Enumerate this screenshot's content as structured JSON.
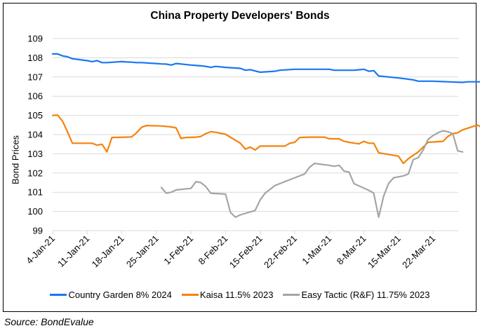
{
  "chart_data": {
    "type": "line",
    "title": "China Property Developers' Bonds",
    "xlabel": "",
    "ylabel": "Bond Prices",
    "ylim": [
      99,
      109
    ],
    "yticks": [
      99,
      100,
      101,
      102,
      103,
      104,
      105,
      106,
      107,
      108,
      109
    ],
    "grid": true,
    "legend_position": "bottom",
    "x_tick_labels": [
      "4-Jan-21",
      "11-Jan-21",
      "18-Jan-21",
      "25-Jan-21",
      "1-Feb-21",
      "8-Feb-21",
      "15-Feb-21",
      "22-Feb-21",
      "1-Mar-21",
      "8-Mar-21",
      "15-Mar-21",
      "22-Mar-21"
    ],
    "x_start": "4-Jan-21",
    "x_end_day": 82,
    "series": [
      {
        "name": "Country Garden 8% 2024",
        "color": "#1877F2",
        "points": [
          [
            0,
            108.2
          ],
          [
            1,
            108.2
          ],
          [
            2,
            108.1
          ],
          [
            3,
            108.05
          ],
          [
            4,
            107.95
          ],
          [
            7,
            107.85
          ],
          [
            8,
            107.8
          ],
          [
            9,
            107.85
          ],
          [
            10,
            107.75
          ],
          [
            11,
            107.75
          ],
          [
            14,
            107.8
          ],
          [
            15,
            107.78
          ],
          [
            16,
            107.77
          ],
          [
            17,
            107.75
          ],
          [
            18,
            107.75
          ],
          [
            21,
            107.7
          ],
          [
            22,
            107.68
          ],
          [
            23,
            107.67
          ],
          [
            24,
            107.62
          ],
          [
            25,
            107.7
          ],
          [
            28,
            107.62
          ],
          [
            29,
            107.6
          ],
          [
            30,
            107.58
          ],
          [
            31,
            107.55
          ],
          [
            32,
            107.5
          ],
          [
            33,
            107.55
          ],
          [
            35,
            107.5
          ],
          [
            38,
            107.45
          ],
          [
            39,
            107.35
          ],
          [
            40,
            107.38
          ],
          [
            42,
            107.25
          ],
          [
            45,
            107.3
          ],
          [
            46,
            107.35
          ],
          [
            49,
            107.4
          ],
          [
            52,
            107.4
          ],
          [
            56,
            107.4
          ],
          [
            57,
            107.35
          ],
          [
            59,
            107.35
          ],
          [
            60,
            107.35
          ],
          [
            61,
            107.35
          ],
          [
            63,
            107.4
          ],
          [
            64,
            107.3
          ],
          [
            65,
            107.33
          ],
          [
            66,
            107.05
          ],
          [
            70,
            106.95
          ],
          [
            73,
            106.85
          ],
          [
            74,
            106.78
          ],
          [
            77,
            106.78
          ],
          [
            80,
            106.75
          ],
          [
            83,
            106.72
          ],
          [
            84,
            106.75
          ],
          [
            87,
            106.75
          ],
          [
            88,
            106.73
          ],
          [
            90,
            106.72
          ]
        ]
      },
      {
        "name": "Kaisa 11.5% 2023",
        "color": "#F5820D",
        "points": [
          [
            0,
            105.0
          ],
          [
            1,
            105.02
          ],
          [
            2,
            104.7
          ],
          [
            3,
            104.15
          ],
          [
            4,
            103.55
          ],
          [
            7,
            103.55
          ],
          [
            8,
            103.55
          ],
          [
            9,
            103.45
          ],
          [
            10,
            103.5
          ],
          [
            11,
            103.1
          ],
          [
            12,
            103.85
          ],
          [
            15,
            103.87
          ],
          [
            16,
            103.88
          ],
          [
            17,
            104.1
          ],
          [
            18,
            104.38
          ],
          [
            19,
            104.47
          ],
          [
            22,
            104.45
          ],
          [
            24,
            104.4
          ],
          [
            25,
            104.35
          ],
          [
            26,
            103.8
          ],
          [
            27,
            103.85
          ],
          [
            29,
            103.87
          ],
          [
            30,
            103.9
          ],
          [
            31,
            104.05
          ],
          [
            32,
            104.15
          ],
          [
            33,
            104.12
          ],
          [
            35,
            104.02
          ],
          [
            38,
            103.55
          ],
          [
            39,
            103.25
          ],
          [
            40,
            103.35
          ],
          [
            41,
            103.2
          ],
          [
            42,
            103.4
          ],
          [
            46,
            103.4
          ],
          [
            47,
            103.4
          ],
          [
            48,
            103.55
          ],
          [
            49,
            103.6
          ],
          [
            50,
            103.85
          ],
          [
            52,
            103.87
          ],
          [
            55,
            103.87
          ],
          [
            56,
            103.78
          ],
          [
            58,
            103.78
          ],
          [
            59,
            103.65
          ],
          [
            60,
            103.6
          ],
          [
            62,
            103.52
          ],
          [
            63,
            103.65
          ],
          [
            64,
            103.55
          ],
          [
            65,
            103.55
          ],
          [
            66,
            103.05
          ],
          [
            70,
            102.88
          ],
          [
            71,
            102.5
          ],
          [
            72,
            102.75
          ],
          [
            74,
            103.1
          ],
          [
            76,
            103.6
          ],
          [
            79,
            103.65
          ],
          [
            80,
            103.9
          ],
          [
            81,
            104.05
          ],
          [
            82,
            104.1
          ],
          [
            83,
            104.25
          ],
          [
            86,
            104.5
          ],
          [
            87,
            104.35
          ],
          [
            88,
            104.2
          ],
          [
            89,
            104.5
          ],
          [
            91,
            104.4
          ]
        ]
      },
      {
        "name": "Easy Tactic (R&F) 11.75% 2023",
        "color": "#A5A5A5",
        "points": [
          [
            22,
            101.25
          ],
          [
            23,
            100.95
          ],
          [
            24,
            101.0
          ],
          [
            25,
            101.12
          ],
          [
            28,
            101.2
          ],
          [
            29,
            101.55
          ],
          [
            30,
            101.5
          ],
          [
            31,
            101.3
          ],
          [
            32,
            100.95
          ],
          [
            35,
            100.9
          ],
          [
            36,
            99.95
          ],
          [
            37,
            99.7
          ],
          [
            38,
            99.82
          ],
          [
            41,
            100.05
          ],
          [
            42,
            100.6
          ],
          [
            43,
            100.95
          ],
          [
            44,
            101.15
          ],
          [
            45,
            101.35
          ],
          [
            49,
            101.75
          ],
          [
            51,
            101.95
          ],
          [
            52,
            102.3
          ],
          [
            53,
            102.5
          ],
          [
            56,
            102.4
          ],
          [
            57,
            102.35
          ],
          [
            58,
            102.4
          ],
          [
            59,
            102.1
          ],
          [
            60,
            102.05
          ],
          [
            61,
            101.45
          ],
          [
            64,
            101.1
          ],
          [
            65,
            100.95
          ],
          [
            66,
            99.7
          ],
          [
            67,
            100.8
          ],
          [
            68,
            101.45
          ],
          [
            69,
            101.75
          ],
          [
            71,
            101.85
          ],
          [
            72,
            101.95
          ],
          [
            73,
            102.7
          ],
          [
            74,
            102.8
          ],
          [
            75,
            103.2
          ],
          [
            76,
            103.75
          ],
          [
            77,
            103.95
          ],
          [
            78,
            104.1
          ],
          [
            79,
            104.2
          ],
          [
            80,
            104.15
          ],
          [
            81,
            104.05
          ],
          [
            82,
            103.15
          ],
          [
            83,
            103.1
          ]
        ]
      }
    ]
  },
  "legend": {
    "items": [
      {
        "label": "Country Garden 8% 2024",
        "color": "#1877F2"
      },
      {
        "label": "Kaisa 11.5% 2023",
        "color": "#F5820D"
      },
      {
        "label": "Easy Tactic (R&F) 11.75% 2023",
        "color": "#A5A5A5"
      }
    ]
  },
  "source": "Source: BondEvalue"
}
